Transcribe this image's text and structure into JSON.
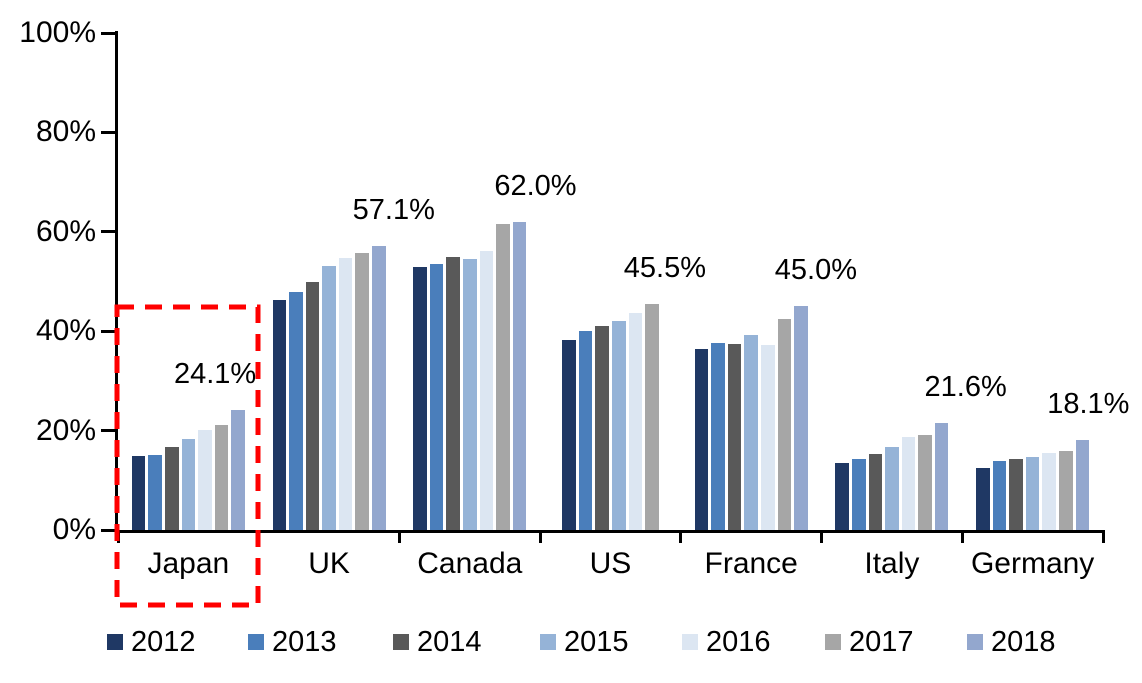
{
  "chart_data": {
    "type": "bar",
    "title": "",
    "categories": [
      "Japan",
      "UK",
      "Canada",
      "US",
      "France",
      "Italy",
      "Germany"
    ],
    "series": [
      {
        "name": "2012",
        "color": "#1F3864",
        "values": [
          14.9,
          46.3,
          53.0,
          38.2,
          36.4,
          13.4,
          12.5
        ]
      },
      {
        "name": "2013",
        "color": "#4A7EBB",
        "values": [
          15.1,
          47.8,
          53.5,
          40.1,
          37.7,
          14.2,
          13.9
        ]
      },
      {
        "name": "2014",
        "color": "#595959",
        "values": [
          16.6,
          49.9,
          54.9,
          41.1,
          37.5,
          15.2,
          14.3
        ]
      },
      {
        "name": "2015",
        "color": "#95B3D7",
        "values": [
          18.3,
          53.1,
          54.6,
          42.1,
          39.2,
          16.8,
          14.7
        ]
      },
      {
        "name": "2016",
        "color": "#DCE6F2",
        "values": [
          20.1,
          54.7,
          56.2,
          43.6,
          37.3,
          18.8,
          15.5
        ]
      },
      {
        "name": "2017",
        "color": "#A6A6A6",
        "values": [
          21.2,
          55.8,
          61.6,
          45.5,
          42.4,
          19.1,
          15.9
        ]
      },
      {
        "name": "2018",
        "color": "#93A7CE",
        "values": [
          24.1,
          57.1,
          62.0,
          null,
          45.0,
          21.6,
          18.1
        ]
      }
    ],
    "data_labels": [
      "24.1%",
      "57.1%",
      "62.0%",
      "45.5%",
      "45.0%",
      "21.6%",
      "18.1%"
    ],
    "ylim": [
      0,
      100
    ],
    "y_tick_step": 20,
    "y_tick_labels": [
      "0%",
      "20%",
      "40%",
      "60%",
      "80%",
      "100%"
    ],
    "grid": false,
    "legend_position": "bottom",
    "axis_color": "#000000",
    "highlight": {
      "category": "Japan",
      "color": "#FF0000",
      "style": "dashed"
    }
  }
}
